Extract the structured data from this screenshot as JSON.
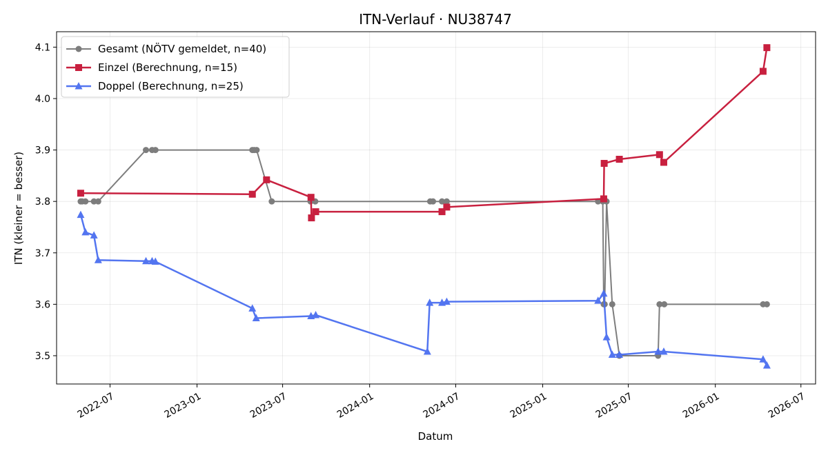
{
  "chart_data": {
    "type": "line",
    "title": "ITN-Verlauf · NU38747",
    "xlabel": "Datum",
    "ylabel": "ITN  (kleiner = besser)",
    "x_axis": {
      "scale": "date",
      "range": [
        "2022-03-10",
        "2026-08-01"
      ],
      "ticks": [
        {
          "value": "2022-07-01",
          "label": "2022-07"
        },
        {
          "value": "2023-01-01",
          "label": "2023-01"
        },
        {
          "value": "2023-07-01",
          "label": "2023-07"
        },
        {
          "value": "2024-01-01",
          "label": "2024-01"
        },
        {
          "value": "2024-07-01",
          "label": "2024-07"
        },
        {
          "value": "2025-01-01",
          "label": "2025-01"
        },
        {
          "value": "2025-07-01",
          "label": "2025-07"
        },
        {
          "value": "2026-01-01",
          "label": "2026-01"
        },
        {
          "value": "2026-07-01",
          "label": "2026-07"
        }
      ]
    },
    "y_axis": {
      "range": [
        3.445,
        4.13
      ],
      "ticks": [
        3.5,
        3.6,
        3.7,
        3.8,
        3.9,
        4.0,
        4.1
      ],
      "tick_labels": [
        "3.5",
        "3.6",
        "3.7",
        "3.8",
        "3.9",
        "4.0",
        "4.1"
      ]
    },
    "grid": true,
    "legend_position": "top-left",
    "series": [
      {
        "name": "Gesamt (NÖTV gemeldet, n=40)",
        "color": "#707070",
        "marker": "circle",
        "points": [
          [
            "2022-04-30",
            3.8
          ],
          [
            "2022-05-03",
            3.8
          ],
          [
            "2022-05-10",
            3.8
          ],
          [
            "2022-05-28",
            3.8
          ],
          [
            "2022-06-06",
            3.8
          ],
          [
            "2022-09-15",
            3.9
          ],
          [
            "2022-09-28",
            3.9
          ],
          [
            "2022-10-05",
            3.9
          ],
          [
            "2023-04-28",
            3.9
          ],
          [
            "2023-05-02",
            3.9
          ],
          [
            "2023-05-07",
            3.9
          ],
          [
            "2023-06-08",
            3.8
          ],
          [
            "2023-08-29",
            3.8
          ],
          [
            "2023-09-08",
            3.8
          ],
          [
            "2024-05-08",
            3.8
          ],
          [
            "2024-05-14",
            3.8
          ],
          [
            "2024-06-02",
            3.8
          ],
          [
            "2024-06-12",
            3.8
          ],
          [
            "2025-04-28",
            3.8
          ],
          [
            "2025-05-08",
            3.8
          ],
          [
            "2025-05-10",
            3.6
          ],
          [
            "2025-05-12",
            3.6
          ],
          [
            "2025-05-16",
            3.8
          ],
          [
            "2025-05-28",
            3.6
          ],
          [
            "2025-06-12",
            3.5
          ],
          [
            "2025-09-02",
            3.5
          ],
          [
            "2025-09-05",
            3.6
          ],
          [
            "2025-09-15",
            3.6
          ],
          [
            "2026-04-12",
            3.6
          ],
          [
            "2026-04-20",
            3.6
          ]
        ]
      },
      {
        "name": "Einzel (Berechnung, n=15)",
        "color": "#c8203f",
        "marker": "square",
        "points": [
          [
            "2022-04-30",
            3.816
          ],
          [
            "2023-04-28",
            3.814
          ],
          [
            "2023-05-28",
            3.842
          ],
          [
            "2023-08-30",
            3.808
          ],
          [
            "2023-08-31",
            3.768
          ],
          [
            "2023-09-09",
            3.78
          ],
          [
            "2024-06-02",
            3.78
          ],
          [
            "2024-06-12",
            3.789
          ],
          [
            "2025-05-10",
            3.805
          ],
          [
            "2025-05-11",
            3.874
          ],
          [
            "2025-06-12",
            3.882
          ],
          [
            "2025-09-05",
            3.891
          ],
          [
            "2025-09-14",
            3.876
          ],
          [
            "2026-04-12",
            4.053
          ],
          [
            "2026-04-20",
            4.099
          ]
        ]
      },
      {
        "name": "Doppel (Berechnung, n=25)",
        "color": "#4a6ef0",
        "marker": "triangle",
        "points": [
          [
            "2022-04-30",
            3.774
          ],
          [
            "2022-05-10",
            3.74
          ],
          [
            "2022-05-28",
            3.734
          ],
          [
            "2022-06-06",
            3.686
          ],
          [
            "2022-09-15",
            3.684
          ],
          [
            "2022-09-28",
            3.684
          ],
          [
            "2022-10-05",
            3.683
          ],
          [
            "2023-04-28",
            3.592
          ],
          [
            "2023-05-06",
            3.573
          ],
          [
            "2023-08-30",
            3.577
          ],
          [
            "2023-09-09",
            3.579
          ],
          [
            "2024-05-02",
            3.508
          ],
          [
            "2024-05-07",
            3.603
          ],
          [
            "2024-06-02",
            3.603
          ],
          [
            "2024-06-12",
            3.605
          ],
          [
            "2025-04-28",
            3.607
          ],
          [
            "2025-05-10",
            3.621
          ],
          [
            "2025-05-16",
            3.536
          ],
          [
            "2025-05-28",
            3.502
          ],
          [
            "2025-06-12",
            3.502
          ],
          [
            "2025-09-02",
            3.508
          ],
          [
            "2025-09-14",
            3.508
          ],
          [
            "2026-04-12",
            3.493
          ],
          [
            "2026-04-20",
            3.481
          ]
        ]
      }
    ]
  }
}
